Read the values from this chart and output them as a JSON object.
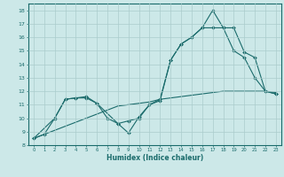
{
  "xlabel": "Humidex (Indice chaleur)",
  "xlim": [
    -0.5,
    23.5
  ],
  "ylim": [
    8,
    18.5
  ],
  "yticks": [
    8,
    9,
    10,
    11,
    12,
    13,
    14,
    15,
    16,
    17,
    18
  ],
  "xticks": [
    0,
    1,
    2,
    3,
    4,
    5,
    6,
    7,
    8,
    9,
    10,
    11,
    12,
    13,
    14,
    15,
    16,
    17,
    18,
    19,
    20,
    21,
    22,
    23
  ],
  "bg_color": "#cce8e8",
  "grid_color": "#aacccc",
  "line_color": "#1a6b6b",
  "line1_x": [
    0,
    1,
    2,
    3,
    4,
    5,
    6,
    7,
    8,
    9,
    10,
    11,
    12,
    13,
    14,
    15,
    16,
    17,
    18,
    19,
    20,
    21,
    22,
    23
  ],
  "line1_y": [
    8.5,
    8.8,
    10.0,
    11.4,
    11.5,
    11.6,
    11.1,
    10.0,
    9.6,
    8.9,
    10.1,
    11.0,
    11.3,
    14.3,
    15.5,
    16.0,
    16.7,
    18.0,
    16.7,
    15.0,
    14.5,
    13.0,
    12.0,
    11.8
  ],
  "line2_x": [
    0,
    1,
    2,
    3,
    4,
    5,
    6,
    7,
    8,
    9,
    10,
    11,
    12,
    13,
    14,
    15,
    16,
    17,
    18,
    19,
    20,
    21,
    22,
    23
  ],
  "line2_y": [
    8.5,
    8.8,
    9.1,
    9.4,
    9.7,
    10.0,
    10.3,
    10.6,
    10.9,
    11.0,
    11.1,
    11.2,
    11.4,
    11.5,
    11.6,
    11.7,
    11.8,
    11.9,
    12.0,
    12.0,
    12.0,
    12.0,
    12.0,
    11.9
  ],
  "line3_x": [
    0,
    2,
    3,
    4,
    5,
    6,
    8,
    9,
    10,
    11,
    12,
    13,
    14,
    15,
    16,
    17,
    18,
    19,
    20,
    21,
    22,
    23
  ],
  "line3_y": [
    8.5,
    10.0,
    11.4,
    11.5,
    11.5,
    11.1,
    9.6,
    9.8,
    10.0,
    11.0,
    11.4,
    14.3,
    15.5,
    16.0,
    16.7,
    16.7,
    16.7,
    16.7,
    14.9,
    14.5,
    12.0,
    11.8
  ]
}
